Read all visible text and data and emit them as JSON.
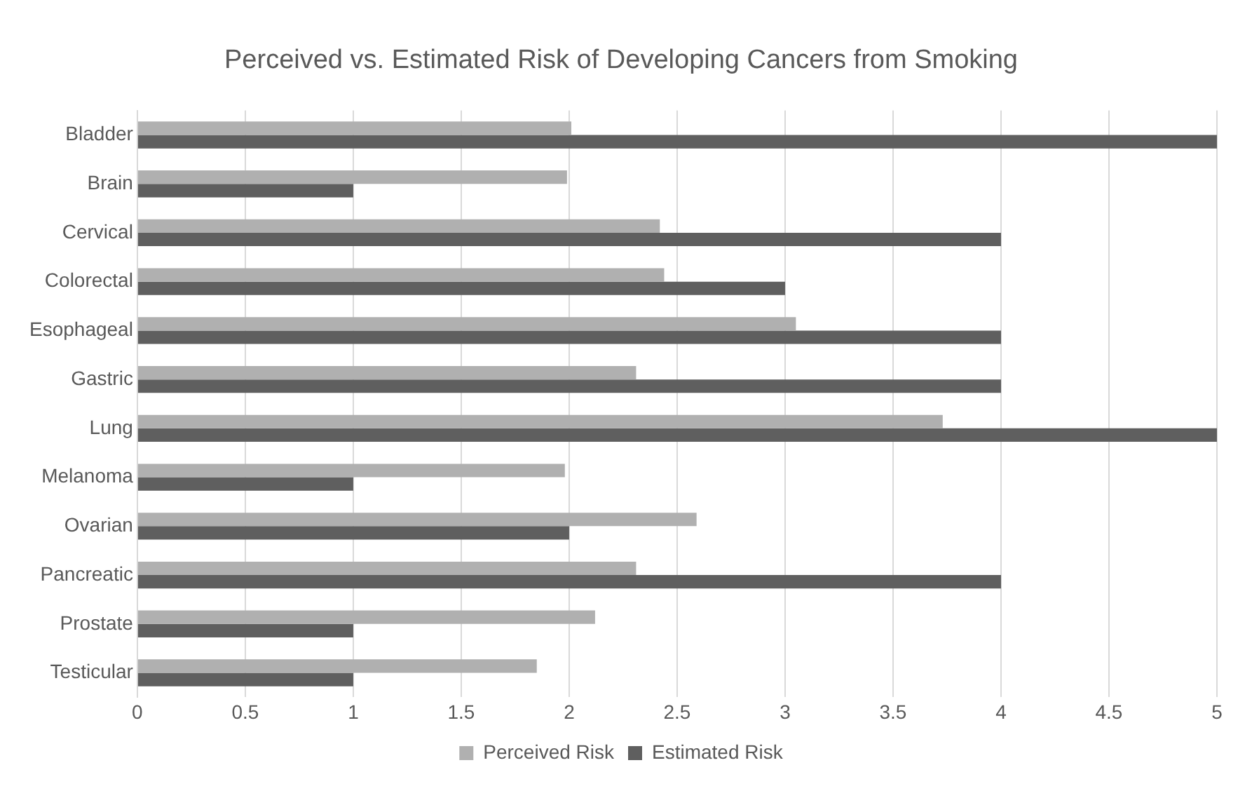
{
  "chart_data": {
    "type": "bar",
    "orientation": "horizontal",
    "title": "Perceived vs. Estimated Risk of Developing Cancers from Smoking",
    "categories": [
      "Bladder",
      "Brain",
      "Cervical",
      "Colorectal",
      "Esophageal",
      "Gastric",
      "Lung",
      "Melanoma",
      "Ovarian",
      "Pancreatic",
      "Prostate",
      "Testicular"
    ],
    "series": [
      {
        "name": "Perceived Risk",
        "color": "#b0b0b0",
        "values": [
          2.01,
          1.99,
          2.42,
          2.44,
          3.05,
          2.31,
          3.73,
          1.98,
          2.59,
          2.31,
          2.12,
          1.85
        ]
      },
      {
        "name": "Estimated Risk",
        "color": "#5f5f5f",
        "values": [
          5,
          1,
          4,
          3,
          4,
          4,
          5,
          1,
          2,
          4,
          1,
          1
        ]
      }
    ],
    "xlim": [
      0,
      5
    ],
    "xticks": [
      0,
      0.5,
      1,
      1.5,
      2,
      2.5,
      3,
      3.5,
      4,
      4.5,
      5
    ],
    "grid": "x",
    "legend": "bottom"
  }
}
